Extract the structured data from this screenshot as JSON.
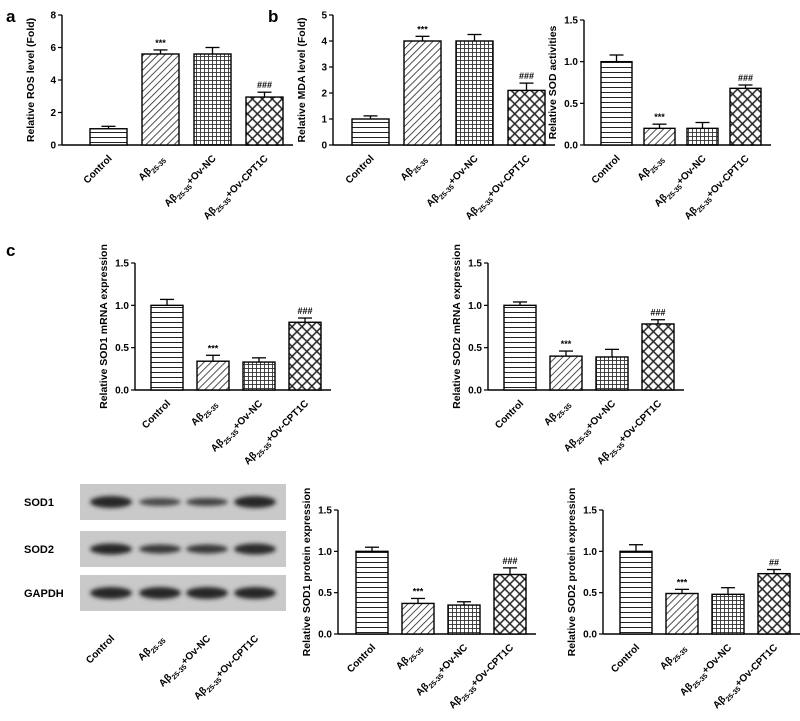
{
  "panels": {
    "a": "a",
    "b": "b",
    "c": "c"
  },
  "sub": {
    "ab": "β",
    "range": "25-35"
  },
  "cat_text": {
    "control": "Control",
    "ab": "Aβ25-35",
    "ab_nc": "Aβ25-35+Ov-NC",
    "ab_cpt": "Aβ25-35+Ov-CPT1C"
  },
  "blot": {
    "labels": [
      "SOD1",
      "SOD2",
      "GAPDH"
    ],
    "categories": [
      "Control",
      "Aβ25-35",
      "Aβ25-35+Ov-NC",
      "Aβ25-35+Ov-CPT1C"
    ]
  },
  "chart_data": [
    {
      "id": "ros",
      "type": "bar",
      "categories": [
        "Control",
        "Aβ25-35",
        "Aβ25-35+Ov-NC",
        "Aβ25-35+Ov-CPT1C"
      ],
      "values": [
        1.0,
        5.6,
        5.6,
        2.95
      ],
      "errors": [
        0.15,
        0.25,
        0.4,
        0.3
      ],
      "significance": [
        "",
        "***",
        "",
        "###"
      ],
      "ylabel": "Relative ROS level (Fold)",
      "ylim": [
        0,
        8
      ],
      "yticks": [
        0,
        2,
        4,
        6,
        8
      ]
    },
    {
      "id": "mda",
      "type": "bar",
      "categories": [
        "Control",
        "Aβ25-35",
        "Aβ25-35+Ov-NC",
        "Aβ25-35+Ov-CPT1C"
      ],
      "values": [
        1.0,
        4.0,
        4.0,
        2.1
      ],
      "errors": [
        0.12,
        0.18,
        0.25,
        0.28
      ],
      "significance": [
        "",
        "***",
        "",
        "###"
      ],
      "ylabel": "Relative MDA level (Fold)",
      "ylim": [
        0,
        5
      ],
      "yticks": [
        0,
        1,
        2,
        3,
        4,
        5
      ]
    },
    {
      "id": "sod",
      "type": "bar",
      "categories": [
        "Control",
        "Aβ25-35",
        "Aβ25-35+Ov-NC",
        "Aβ25-35+Ov-CPT1C"
      ],
      "values": [
        1.0,
        0.2,
        0.2,
        0.68
      ],
      "errors": [
        0.08,
        0.05,
        0.07,
        0.04
      ],
      "significance": [
        "",
        "***",
        "",
        "###"
      ],
      "ylabel": "Relative SOD activities",
      "ylim": [
        0,
        1.5
      ],
      "yticks": [
        0.0,
        0.5,
        1.0,
        1.5
      ]
    },
    {
      "id": "sod1_mrna",
      "type": "bar",
      "categories": [
        "Control",
        "Aβ25-35",
        "Aβ25-35+Ov-NC",
        "Aβ25-35+Ov-CPT1C"
      ],
      "values": [
        1.0,
        0.34,
        0.33,
        0.8
      ],
      "errors": [
        0.07,
        0.07,
        0.05,
        0.05
      ],
      "significance": [
        "",
        "***",
        "",
        "###"
      ],
      "ylabel": "Relative SOD1 mRNA expression",
      "ylim": [
        0,
        1.5
      ],
      "yticks": [
        0.0,
        0.5,
        1.0,
        1.5
      ]
    },
    {
      "id": "sod2_mrna",
      "type": "bar",
      "categories": [
        "Control",
        "Aβ25-35",
        "Aβ25-35+Ov-NC",
        "Aβ25-35+Ov-CPT1C"
      ],
      "values": [
        1.0,
        0.4,
        0.39,
        0.78
      ],
      "errors": [
        0.04,
        0.06,
        0.09,
        0.05
      ],
      "significance": [
        "",
        "***",
        "",
        "###"
      ],
      "ylabel": "Relative SOD2 mRNA expression",
      "ylim": [
        0,
        1.5
      ],
      "yticks": [
        0.0,
        0.5,
        1.0,
        1.5
      ]
    },
    {
      "id": "sod1_protein",
      "type": "bar",
      "categories": [
        "Control",
        "Aβ25-35",
        "Aβ25-35+Ov-NC",
        "Aβ25-35+Ov-CPT1C"
      ],
      "values": [
        1.0,
        0.37,
        0.35,
        0.72
      ],
      "errors": [
        0.05,
        0.06,
        0.04,
        0.08
      ],
      "significance": [
        "",
        "***",
        "",
        "###"
      ],
      "ylabel": "Relative SOD1 protein expression",
      "ylim": [
        0,
        1.5
      ],
      "yticks": [
        0.0,
        0.5,
        1.0,
        1.5
      ]
    },
    {
      "id": "sod2_protein",
      "type": "bar",
      "categories": [
        "Control",
        "Aβ25-35",
        "Aβ25-35+Ov-NC",
        "Aβ25-35+Ov-CPT1C"
      ],
      "values": [
        1.0,
        0.49,
        0.48,
        0.73
      ],
      "errors": [
        0.08,
        0.05,
        0.08,
        0.05
      ],
      "significance": [
        "",
        "***",
        "",
        "##"
      ],
      "ylabel": "Relative SOD2 protein expression",
      "ylim": [
        0,
        1.5
      ],
      "yticks": [
        0.0,
        0.5,
        1.0,
        1.5
      ]
    }
  ]
}
